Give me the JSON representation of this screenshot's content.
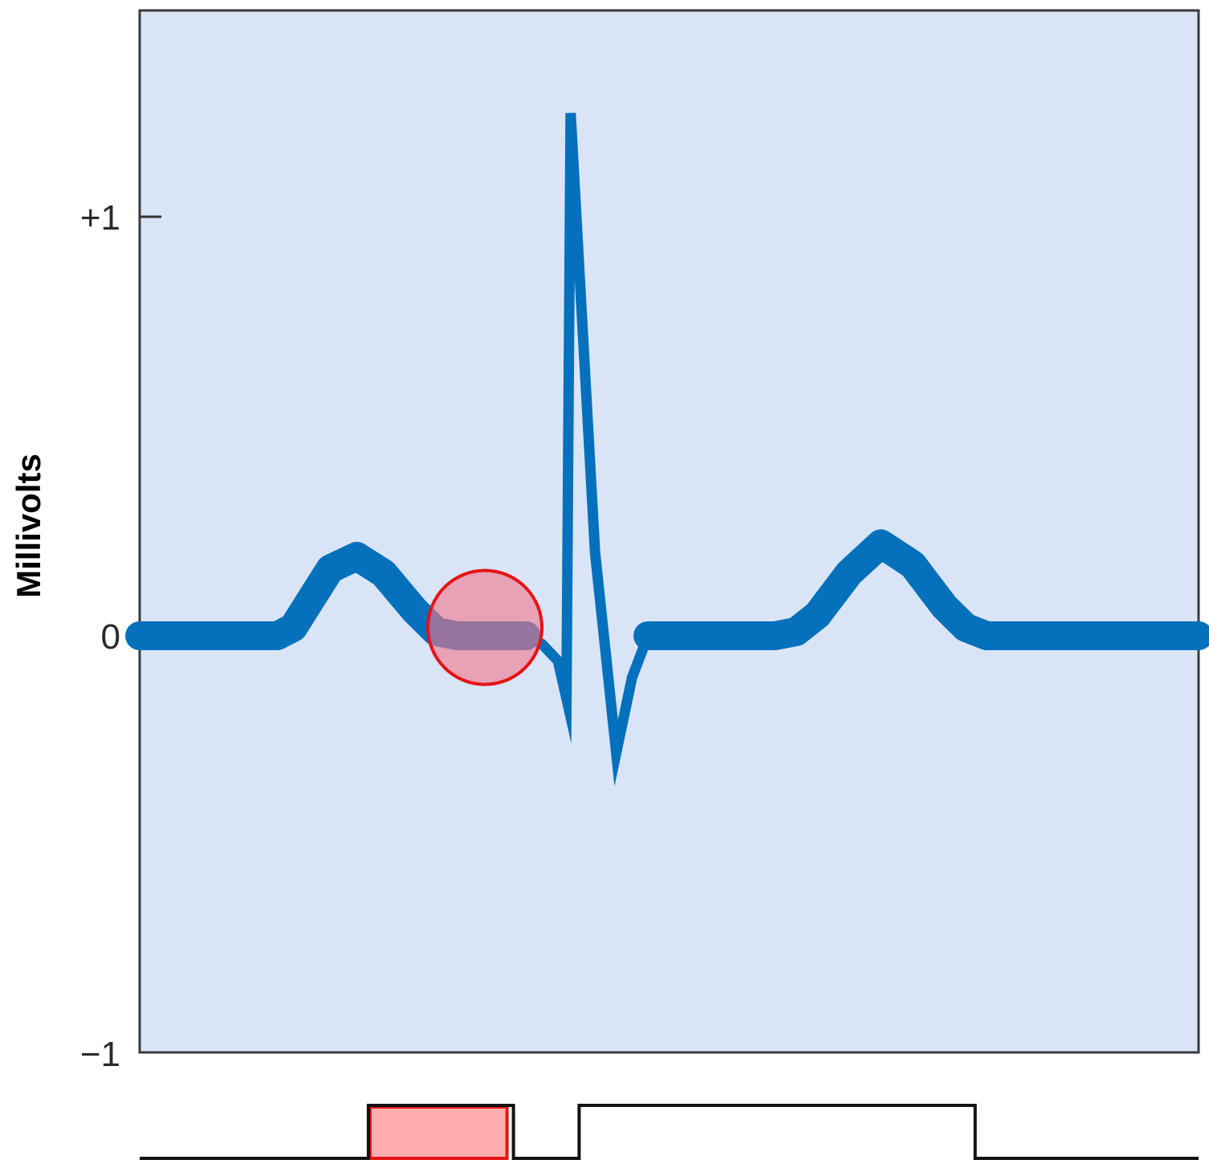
{
  "chart_data": {
    "type": "line",
    "title": "",
    "xlabel": "",
    "ylabel": "Millivolts",
    "ylim": [
      -1,
      1.5
    ],
    "y_ticks": [
      {
        "value": 1,
        "label": "+1"
      },
      {
        "value": 0,
        "label": "0"
      },
      {
        "value": -1,
        "label": "−1"
      }
    ],
    "grid": false,
    "legend": "none",
    "x_domain": [
      0,
      100
    ],
    "series": [
      {
        "color": "#0570bb",
        "points": [
          [
            0,
            0
          ],
          [
            13,
            0
          ],
          [
            14.5,
            0.02
          ],
          [
            16,
            0.08
          ],
          [
            18,
            0.16
          ],
          [
            20.5,
            0.19
          ],
          [
            23,
            0.15
          ],
          [
            26,
            0.06
          ],
          [
            28,
            0.01
          ],
          [
            30,
            0
          ],
          [
            36.5,
            0
          ],
          [
            38,
            -0.02
          ],
          [
            39.5,
            -0.06
          ],
          [
            40.3,
            -0.15
          ],
          [
            40.7,
            1.25
          ],
          [
            43,
            0.2
          ],
          [
            45,
            -0.28
          ],
          [
            46.5,
            -0.1
          ],
          [
            48,
            0
          ],
          [
            60,
            0
          ],
          [
            62,
            0.01
          ],
          [
            64,
            0.05
          ],
          [
            67,
            0.15
          ],
          [
            70,
            0.22
          ],
          [
            73,
            0.17
          ],
          [
            76,
            0.07
          ],
          [
            78,
            0.02
          ],
          [
            80,
            0
          ],
          [
            100,
            0
          ]
        ]
      }
    ],
    "highlight_circle": {
      "x": 32.6,
      "y": 0.02,
      "color": "#e51414"
    },
    "interval_bar": {
      "segments": [
        {
          "from": 0,
          "to": 21.6,
          "level": "low"
        },
        {
          "from": 21.6,
          "to": 35.3,
          "level": "high",
          "highlighted": true
        },
        {
          "from": 35.3,
          "to": 41.5,
          "level": "low"
        },
        {
          "from": 41.5,
          "to": 78.9,
          "level": "high"
        },
        {
          "from": 78.9,
          "to": 100,
          "level": "low"
        }
      ],
      "highlight_color": "#ffadb0"
    }
  }
}
